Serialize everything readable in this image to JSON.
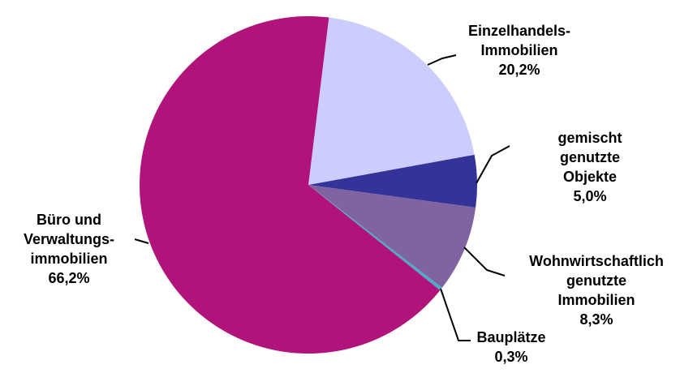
{
  "chart_data": {
    "type": "pie",
    "categories": [
      "Einzelhandels-\nImmobilien",
      "gemischt genutzte\nObjekte",
      "Wohnwirtschaftlich\ngenutzte Immobilien",
      "Bauplätze",
      "Büro und\nVerwaltungs-\nimmobilien"
    ],
    "values": [
      20.2,
      5.0,
      8.3,
      0.3,
      66.2
    ],
    "value_labels": [
      "20,2%",
      "5,0%",
      "8,3%",
      "0,3%",
      "66,2%"
    ],
    "colors": [
      "#ccccff",
      "#333399",
      "#8064a2",
      "#4bacc6",
      "#b0137a"
    ]
  }
}
